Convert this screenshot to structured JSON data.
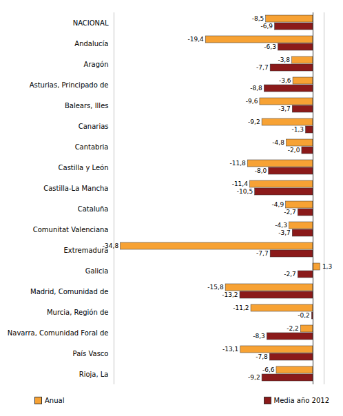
{
  "chart_data": {
    "type": "bar",
    "orientation": "horizontal",
    "categories": [
      "NACIONAL",
      "Andalucía",
      "Aragón",
      "Asturias, Principado de",
      "Balears, Illes",
      "Canarias",
      "Cantabria",
      "Castilla y León",
      "Castilla-La Mancha",
      "Cataluña",
      "Comunitat Valenciana",
      "Extremadura",
      "Galicia",
      "Madrid, Comunidad de",
      "Murcia, Región de",
      "Navarra, Comunidad Foral de",
      "País Vasco",
      "Rioja, La"
    ],
    "series": [
      {
        "name": "Anual",
        "color": "#f7a234",
        "values": [
          -8.5,
          -19.4,
          -3.8,
          -3.6,
          -9.6,
          -9.2,
          -4.8,
          -11.8,
          -11.4,
          -4.9,
          -4.3,
          -34.8,
          1.3,
          -15.8,
          -11.2,
          -2.2,
          -13.1,
          -6.6
        ],
        "value_labels": [
          "-8,5",
          "-19,4",
          "-3,8",
          "-3,6",
          "-9,6",
          "-9,2",
          "-4,8",
          "-11,8",
          "-11,4",
          "-4,9",
          "-4,3",
          "-34,8",
          "1,3",
          "-15,8",
          "-11,2",
          "-2,2",
          "-13,1",
          "-6,6"
        ]
      },
      {
        "name": "Media año 2012",
        "color": "#8b1a1a",
        "values": [
          -6.9,
          -6.3,
          -7.7,
          -8.8,
          -3.7,
          -1.3,
          -2.0,
          -8.0,
          -10.5,
          -2.7,
          -3.7,
          -7.7,
          -2.7,
          -13.2,
          -0.2,
          -8.3,
          -7.8,
          -9.2
        ],
        "value_labels": [
          "-6,9",
          "-6,3",
          "-7,7",
          "-8,8",
          "-3,7",
          "-1,3",
          "-2,0",
          "-8,0",
          "-10,5",
          "-2,7",
          "-3,7",
          "-7,7",
          "-2,7",
          "-13,2",
          "-0,2",
          "-8,3",
          "-7,8",
          "-9,2"
        ]
      }
    ],
    "xlim": [
      -36,
      2
    ],
    "xticks": [],
    "tick_labels": "y",
    "data_labels": true,
    "legend": "bottom"
  }
}
